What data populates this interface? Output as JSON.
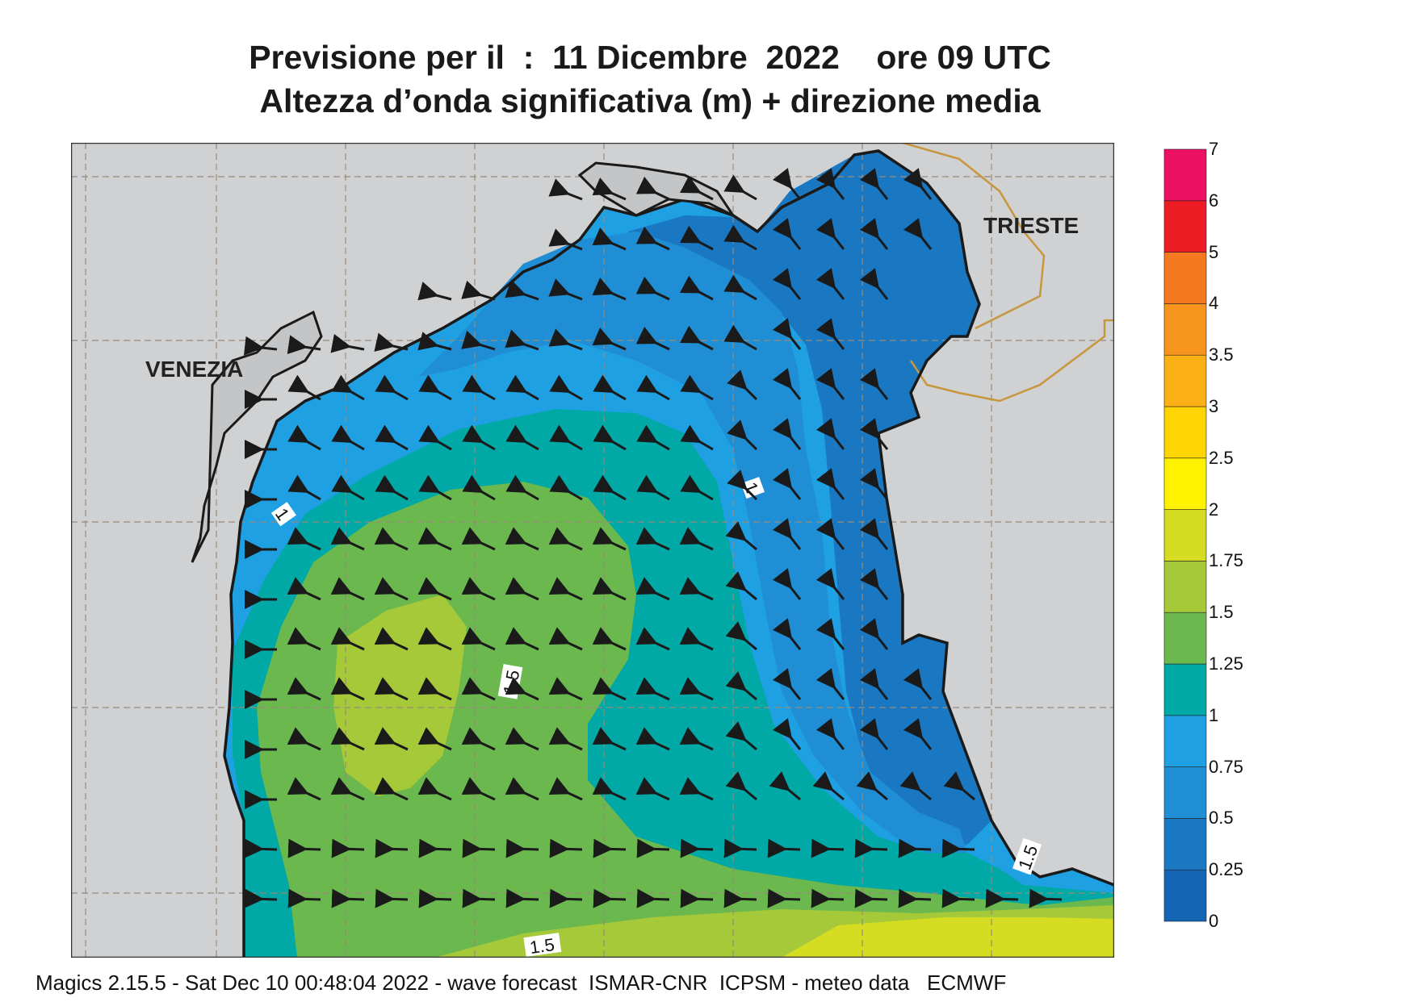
{
  "header": {
    "title_line1": "Previsione per il  :  11 Dicembre  2022    ore 09 UTC",
    "title_line2": "Altezza d’onda significativa (m) + direzione media"
  },
  "map": {
    "cities": [
      {
        "name": "VENEZIA"
      },
      {
        "name": "TRIESTE"
      }
    ],
    "contour_labels": [
      "1",
      "1",
      "1.5",
      "1.5",
      "1.5"
    ],
    "colors": {
      "land": "#d0d1d2",
      "coast": "#1a1a1a",
      "border": "#c8963c",
      "grid": "#9a8a78",
      "arrow": "#1a1a1a"
    }
  },
  "legend": {
    "levels": [
      {
        "label": "0",
        "color": "#1565b4"
      },
      {
        "label": "0.25",
        "color": "#1a78c2"
      },
      {
        "label": "0.5",
        "color": "#1f8ed5"
      },
      {
        "label": "0.75",
        "color": "#1fa0e2"
      },
      {
        "label": "1",
        "color": "#00a8a6"
      },
      {
        "label": "1.25",
        "color": "#6ab84e"
      },
      {
        "label": "1.5",
        "color": "#a6c93a"
      },
      {
        "label": "1.75",
        "color": "#d5dc22"
      },
      {
        "label": "2",
        "color": "#fff200"
      },
      {
        "label": "2.5",
        "color": "#ffd400"
      },
      {
        "label": "3",
        "color": "#fbb016"
      },
      {
        "label": "3.5",
        "color": "#f7941d"
      },
      {
        "label": "4",
        "color": "#f57921"
      },
      {
        "label": "5",
        "color": "#ee1c24"
      },
      {
        "label": "6",
        "color": "#ec1163"
      },
      {
        "label": "7",
        "color": ""
      }
    ]
  },
  "footer": {
    "text": "Magics 2.15.5 - Sat Dec 10 00:48:04 2022 - wave forecast  ISMAR-CNR  ICPSM - meteo data   ECMWF"
  }
}
